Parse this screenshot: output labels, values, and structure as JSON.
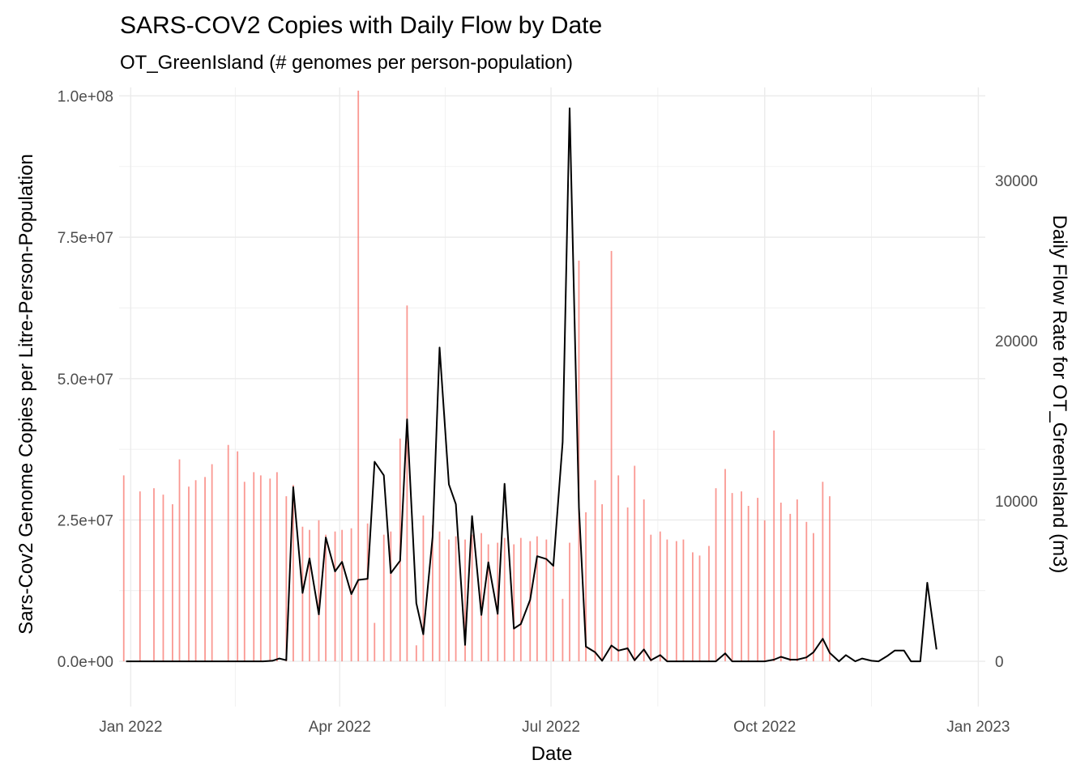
{
  "chart_data": {
    "type": "bar+line",
    "title": "SARS-COV2 Copies with Daily Flow by Date",
    "subtitle": "OT_GreenIsland (# genomes per person-population)",
    "xlabel": "Date",
    "ylabel": "Sars-Cov2 Genome Copies per Litre-Person-Population",
    "y2label": "Daily Flow Rate for OT_GreenIsland (m3)",
    "x_range_days": [
      -5,
      368
    ],
    "x_ticks": [
      {
        "day": 0,
        "label": "Jan 2022"
      },
      {
        "day": 90,
        "label": "Apr 2022"
      },
      {
        "day": 181,
        "label": "Jul 2022"
      },
      {
        "day": 273,
        "label": "Oct 2022"
      },
      {
        "day": 365,
        "label": "Jan 2023"
      }
    ],
    "ylim": [
      -8000000,
      101500000
    ],
    "y_ticks": [
      {
        "value": 0,
        "label": "0.0e+00"
      },
      {
        "value": 25000000,
        "label": "2.5e+07"
      },
      {
        "value": 50000000,
        "label": "5.0e+07"
      },
      {
        "value": 75000000,
        "label": "7.5e+07"
      },
      {
        "value": 100000000,
        "label": "1.0e+08"
      }
    ],
    "y2_scale_per_unit": 2835,
    "y2_ticks": [
      {
        "value": 0,
        "label": "0"
      },
      {
        "value": 10000,
        "label": "10000"
      },
      {
        "value": 20000,
        "label": "20000"
      },
      {
        "value": 30000,
        "label": "30000"
      }
    ],
    "series": [
      {
        "name": "Daily Flow",
        "type": "bar",
        "color": "#f8766d",
        "points": [
          {
            "day": -3,
            "flow": 11600
          },
          {
            "day": 4,
            "flow": 10600
          },
          {
            "day": 10,
            "flow": 10800
          },
          {
            "day": 14,
            "flow": 10400
          },
          {
            "day": 18,
            "flow": 9800
          },
          {
            "day": 21,
            "flow": 12600
          },
          {
            "day": 25,
            "flow": 10900
          },
          {
            "day": 28,
            "flow": 11300
          },
          {
            "day": 32,
            "flow": 11500
          },
          {
            "day": 35,
            "flow": 12300
          },
          {
            "day": 42,
            "flow": 13500
          },
          {
            "day": 46,
            "flow": 13100
          },
          {
            "day": 49,
            "flow": 11200
          },
          {
            "day": 53,
            "flow": 11800
          },
          {
            "day": 56,
            "flow": 11600
          },
          {
            "day": 60,
            "flow": 11400
          },
          {
            "day": 63,
            "flow": 11800
          },
          {
            "day": 67,
            "flow": 10300
          },
          {
            "day": 70,
            "flow": 11000
          },
          {
            "day": 74,
            "flow": 8400
          },
          {
            "day": 77,
            "flow": 8200
          },
          {
            "day": 81,
            "flow": 8800
          },
          {
            "day": 84,
            "flow": 7900
          },
          {
            "day": 88,
            "flow": 8100
          },
          {
            "day": 91,
            "flow": 8200
          },
          {
            "day": 95,
            "flow": 8300
          },
          {
            "day": 98,
            "flow": 35600
          },
          {
            "day": 102,
            "flow": 8600
          },
          {
            "day": 105,
            "flow": 2400
          },
          {
            "day": 109,
            "flow": 7900
          },
          {
            "day": 112,
            "flow": 8100
          },
          {
            "day": 116,
            "flow": 13900
          },
          {
            "day": 119,
            "flow": 22200
          },
          {
            "day": 123,
            "flow": 1000
          },
          {
            "day": 126,
            "flow": 9100
          },
          {
            "day": 130,
            "flow": 8500
          },
          {
            "day": 133,
            "flow": 8100
          },
          {
            "day": 137,
            "flow": 7600
          },
          {
            "day": 140,
            "flow": 7800
          },
          {
            "day": 144,
            "flow": 7600
          },
          {
            "day": 147,
            "flow": 7900
          },
          {
            "day": 151,
            "flow": 8000
          },
          {
            "day": 154,
            "flow": 7300
          },
          {
            "day": 158,
            "flow": 7400
          },
          {
            "day": 161,
            "flow": 7700
          },
          {
            "day": 165,
            "flow": 7300
          },
          {
            "day": 168,
            "flow": 7700
          },
          {
            "day": 172,
            "flow": 7500
          },
          {
            "day": 175,
            "flow": 7800
          },
          {
            "day": 179,
            "flow": 7600
          },
          {
            "day": 182,
            "flow": 6000
          },
          {
            "day": 186,
            "flow": 3900
          },
          {
            "day": 189,
            "flow": 7400
          },
          {
            "day": 193,
            "flow": 25000
          },
          {
            "day": 196,
            "flow": 9300
          },
          {
            "day": 200,
            "flow": 11300
          },
          {
            "day": 203,
            "flow": 9800
          },
          {
            "day": 207,
            "flow": 25600
          },
          {
            "day": 210,
            "flow": 11600
          },
          {
            "day": 214,
            "flow": 9600
          },
          {
            "day": 217,
            "flow": 12200
          },
          {
            "day": 221,
            "flow": 10100
          },
          {
            "day": 224,
            "flow": 7900
          },
          {
            "day": 228,
            "flow": 8100
          },
          {
            "day": 231,
            "flow": 7600
          },
          {
            "day": 235,
            "flow": 7500
          },
          {
            "day": 238,
            "flow": 7600
          },
          {
            "day": 242,
            "flow": 6800
          },
          {
            "day": 245,
            "flow": 6600
          },
          {
            "day": 249,
            "flow": 7200
          },
          {
            "day": 252,
            "flow": 10800
          },
          {
            "day": 256,
            "flow": 12000
          },
          {
            "day": 259,
            "flow": 10500
          },
          {
            "day": 263,
            "flow": 10600
          },
          {
            "day": 266,
            "flow": 9700
          },
          {
            "day": 270,
            "flow": 10200
          },
          {
            "day": 273,
            "flow": 8800
          },
          {
            "day": 277,
            "flow": 14400
          },
          {
            "day": 280,
            "flow": 9900
          },
          {
            "day": 284,
            "flow": 9200
          },
          {
            "day": 287,
            "flow": 10100
          },
          {
            "day": 291,
            "flow": 8700
          },
          {
            "day": 294,
            "flow": 8000
          },
          {
            "day": 298,
            "flow": 11200
          },
          {
            "day": 301,
            "flow": 10300
          }
        ]
      },
      {
        "name": "SARS-CoV2 Copies",
        "type": "line",
        "color": "#000000",
        "points": [
          {
            "day": -2,
            "value": 0
          },
          {
            "day": 6,
            "value": 0
          },
          {
            "day": 20,
            "value": 0
          },
          {
            "day": 40,
            "value": 0
          },
          {
            "day": 57,
            "value": 0
          },
          {
            "day": 61,
            "value": 100000
          },
          {
            "day": 64,
            "value": 500000
          },
          {
            "day": 67,
            "value": 200000
          },
          {
            "day": 70,
            "value": 30800000
          },
          {
            "day": 74,
            "value": 12100000
          },
          {
            "day": 77,
            "value": 18200000
          },
          {
            "day": 81,
            "value": 8300000
          },
          {
            "day": 84,
            "value": 21900000
          },
          {
            "day": 88,
            "value": 15900000
          },
          {
            "day": 91,
            "value": 17600000
          },
          {
            "day": 95,
            "value": 11900000
          },
          {
            "day": 98,
            "value": 14400000
          },
          {
            "day": 102,
            "value": 14600000
          },
          {
            "day": 105,
            "value": 35300000
          },
          {
            "day": 109,
            "value": 32900000
          },
          {
            "day": 112,
            "value": 15600000
          },
          {
            "day": 116,
            "value": 17800000
          },
          {
            "day": 119,
            "value": 42800000
          },
          {
            "day": 123,
            "value": 10300000
          },
          {
            "day": 126,
            "value": 4800000
          },
          {
            "day": 130,
            "value": 22000000
          },
          {
            "day": 133,
            "value": 55500000
          },
          {
            "day": 137,
            "value": 31300000
          },
          {
            "day": 140,
            "value": 27800000
          },
          {
            "day": 144,
            "value": 2900000
          },
          {
            "day": 147,
            "value": 25700000
          },
          {
            "day": 151,
            "value": 8200000
          },
          {
            "day": 154,
            "value": 17500000
          },
          {
            "day": 158,
            "value": 8400000
          },
          {
            "day": 161,
            "value": 31400000
          },
          {
            "day": 165,
            "value": 5800000
          },
          {
            "day": 168,
            "value": 6600000
          },
          {
            "day": 172,
            "value": 10900000
          },
          {
            "day": 175,
            "value": 18600000
          },
          {
            "day": 179,
            "value": 18100000
          },
          {
            "day": 182,
            "value": 16900000
          },
          {
            "day": 186,
            "value": 38800000
          },
          {
            "day": 189,
            "value": 97800000
          },
          {
            "day": 193,
            "value": 27200000
          },
          {
            "day": 196,
            "value": 2600000
          },
          {
            "day": 200,
            "value": 1600000
          },
          {
            "day": 203,
            "value": 100000
          },
          {
            "day": 207,
            "value": 2800000
          },
          {
            "day": 210,
            "value": 1900000
          },
          {
            "day": 214,
            "value": 2300000
          },
          {
            "day": 217,
            "value": 200000
          },
          {
            "day": 221,
            "value": 2100000
          },
          {
            "day": 224,
            "value": 200000
          },
          {
            "day": 228,
            "value": 1100000
          },
          {
            "day": 231,
            "value": 0
          },
          {
            "day": 238,
            "value": 0
          },
          {
            "day": 245,
            "value": 0
          },
          {
            "day": 252,
            "value": 0
          },
          {
            "day": 256,
            "value": 1400000
          },
          {
            "day": 259,
            "value": 0
          },
          {
            "day": 266,
            "value": 0
          },
          {
            "day": 273,
            "value": 0
          },
          {
            "day": 277,
            "value": 300000
          },
          {
            "day": 280,
            "value": 800000
          },
          {
            "day": 284,
            "value": 300000
          },
          {
            "day": 287,
            "value": 300000
          },
          {
            "day": 291,
            "value": 700000
          },
          {
            "day": 294,
            "value": 1600000
          },
          {
            "day": 298,
            "value": 4000000
          },
          {
            "day": 301,
            "value": 1500000
          },
          {
            "day": 305,
            "value": 0
          },
          {
            "day": 308,
            "value": 1100000
          },
          {
            "day": 312,
            "value": 0
          },
          {
            "day": 315,
            "value": 500000
          },
          {
            "day": 319,
            "value": 100000
          },
          {
            "day": 322,
            "value": 0
          },
          {
            "day": 326,
            "value": 1000000
          },
          {
            "day": 329,
            "value": 1900000
          },
          {
            "day": 333,
            "value": 1900000
          },
          {
            "day": 336,
            "value": 0
          },
          {
            "day": 340,
            "value": 0
          },
          {
            "day": 343,
            "value": 13900000
          },
          {
            "day": 347,
            "value": 2100000
          }
        ]
      }
    ]
  }
}
